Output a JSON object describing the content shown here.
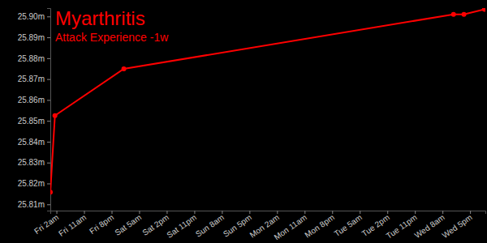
{
  "chart_data": {
    "type": "line",
    "title": "Myarthritis",
    "subtitle": "Attack Experience -1w",
    "x": [
      0,
      1.5,
      24,
      131.6,
      135,
      141.7
    ],
    "values": [
      25.8158,
      25.8525,
      25.8749,
      25.901,
      25.901,
      25.9034
    ],
    "color": "#ff0000",
    "marker": "circle",
    "grid": false,
    "xlim": [
      0,
      142
    ],
    "xticks": [
      {
        "value": 2,
        "label": "Fri 2am"
      },
      {
        "value": 11,
        "label": "Fri 11am"
      },
      {
        "value": 20,
        "label": "Fri 8pm"
      },
      {
        "value": 29,
        "label": "Sat 5am"
      },
      {
        "value": 38,
        "label": "Sat 2pm"
      },
      {
        "value": 47,
        "label": "Sat 11pm"
      },
      {
        "value": 56,
        "label": "Sun 8am"
      },
      {
        "value": 65,
        "label": "Sun 5pm"
      },
      {
        "value": 74,
        "label": "Mon 2am"
      },
      {
        "value": 83,
        "label": "Mon 11am"
      },
      {
        "value": 92,
        "label": "Mon 8pm"
      },
      {
        "value": 101,
        "label": "Tue 5am"
      },
      {
        "value": 110,
        "label": "Tue 2pm"
      },
      {
        "value": 119,
        "label": "Tue 11pm"
      },
      {
        "value": 128,
        "label": "Wed 8am"
      },
      {
        "value": 137,
        "label": "Wed 5pm"
      }
    ],
    "ylim": [
      25.807,
      25.904
    ],
    "yticks": [
      {
        "value": 25.81,
        "label": "25.81m"
      },
      {
        "value": 25.82,
        "label": "25.82m"
      },
      {
        "value": 25.83,
        "label": "25.83m"
      },
      {
        "value": 25.84,
        "label": "25.84m"
      },
      {
        "value": 25.85,
        "label": "25.85m"
      },
      {
        "value": 25.86,
        "label": "25.86m"
      },
      {
        "value": 25.87,
        "label": "25.87m"
      },
      {
        "value": 25.88,
        "label": "25.88m"
      },
      {
        "value": 25.89,
        "label": "25.89m"
      },
      {
        "value": 25.9,
        "label": "25.90m"
      }
    ]
  }
}
